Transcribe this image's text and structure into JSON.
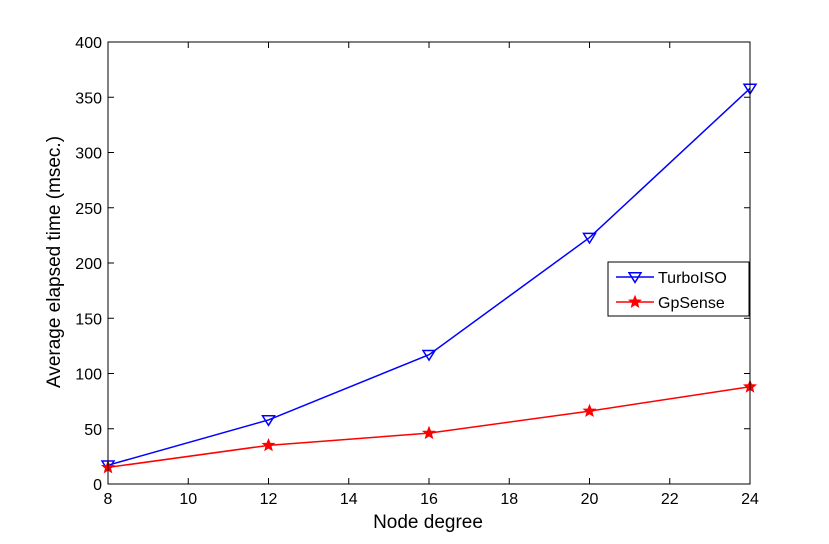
{
  "chart_data": {
    "type": "line",
    "title": "",
    "xlabel": "Node degree",
    "ylabel": "Average elapsed time (msec.)",
    "xlim": [
      8,
      24
    ],
    "ylim": [
      0,
      400
    ],
    "xticks": [
      8,
      10,
      12,
      14,
      16,
      18,
      20,
      22,
      24
    ],
    "yticks": [
      0,
      50,
      100,
      150,
      200,
      250,
      300,
      350,
      400
    ],
    "grid": false,
    "legend_position": "right",
    "x": [
      8,
      12,
      16,
      20,
      24
    ],
    "series": [
      {
        "name": "TurboISO",
        "values": [
          17,
          58,
          117,
          223,
          358
        ],
        "color": "#0000ff",
        "marker": "triangle-down"
      },
      {
        "name": "GpSense",
        "values": [
          15,
          35,
          46,
          66,
          88
        ],
        "color": "#ff0000",
        "marker": "star"
      }
    ]
  }
}
